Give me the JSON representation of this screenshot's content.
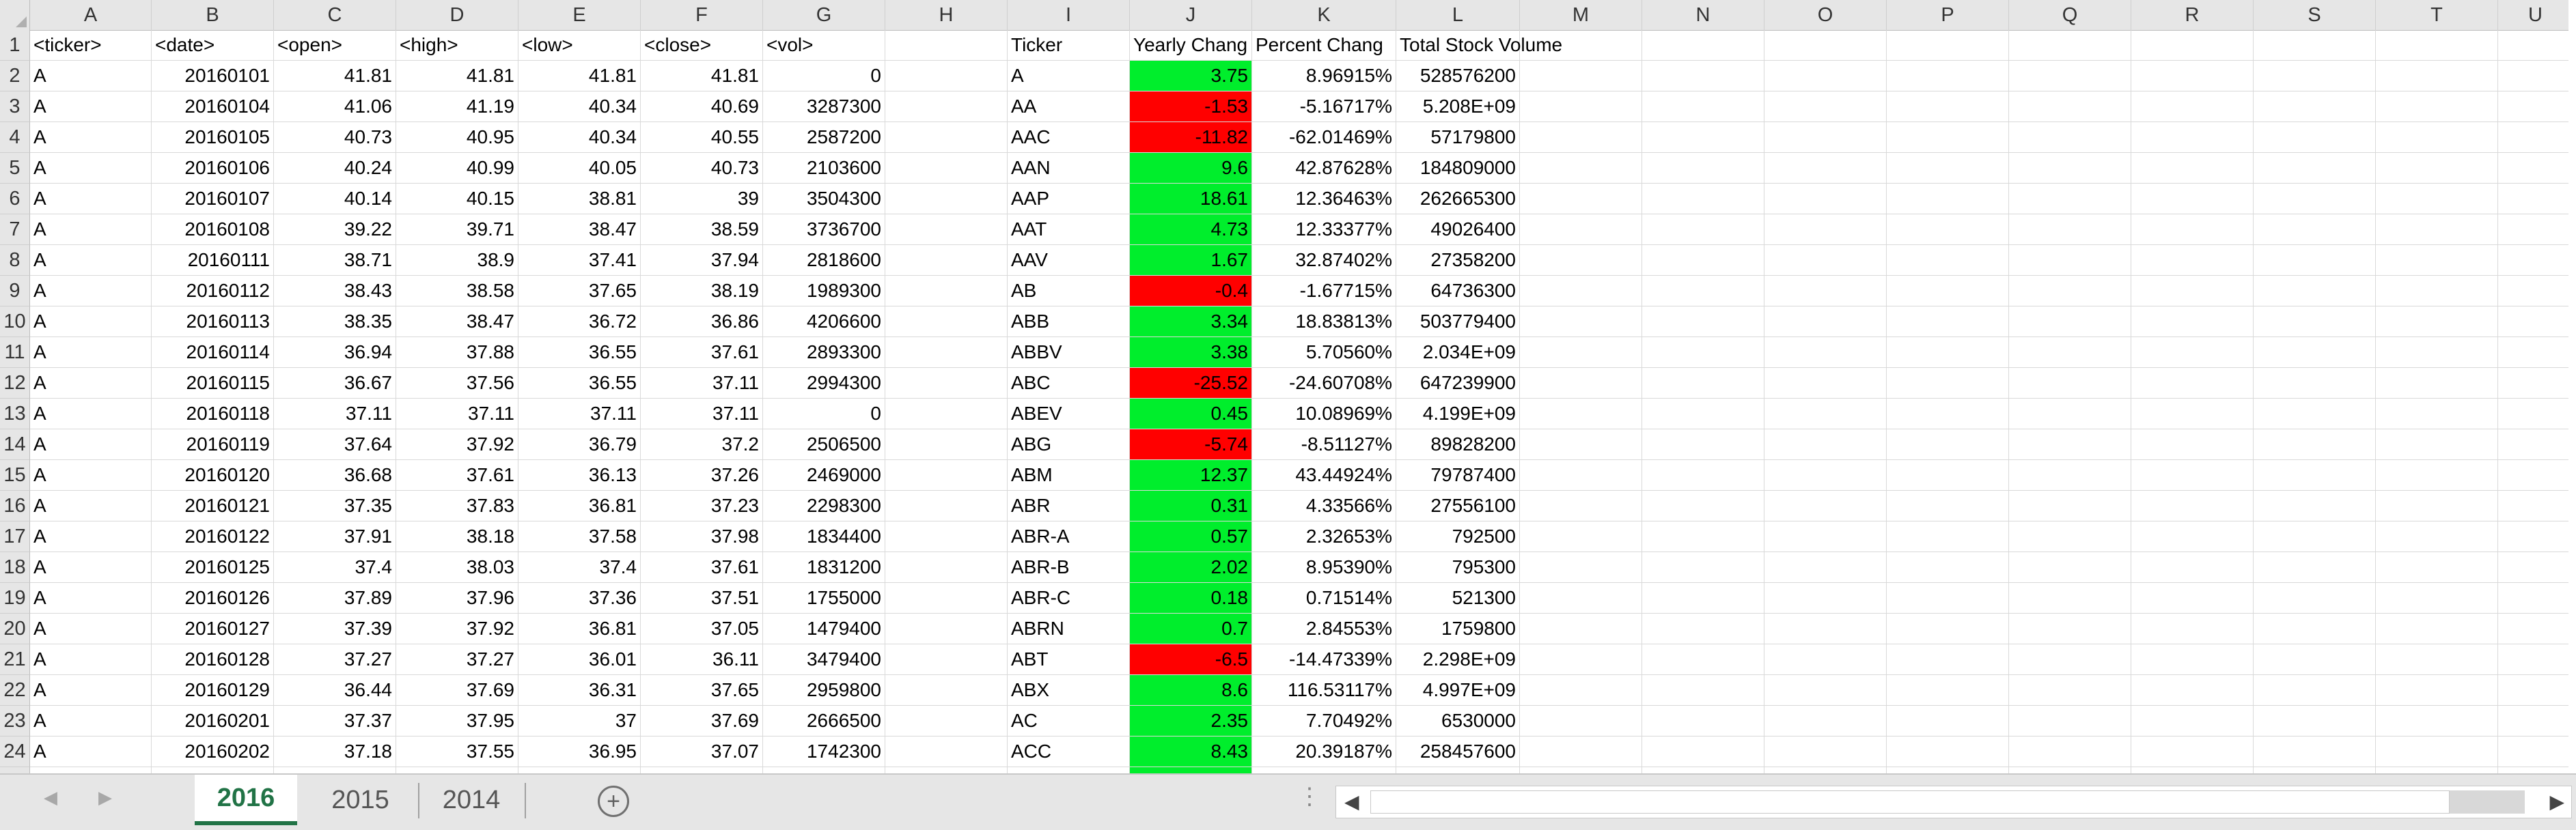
{
  "columns": [
    "A",
    "B",
    "C",
    "D",
    "E",
    "F",
    "G",
    "H",
    "I",
    "J",
    "K",
    "L",
    "M",
    "N",
    "O",
    "P",
    "Q",
    "R",
    "S",
    "T",
    "U"
  ],
  "header_row": [
    "<ticker>",
    "<date>",
    "<open>",
    "<high>",
    "<low>",
    "<close>",
    "<vol>",
    "",
    "Ticker",
    "Yearly Chang",
    "Percent Chang",
    "Total Stock Volume"
  ],
  "rows": [
    {
      "n": "2",
      "a": "A",
      "b": "20160101",
      "c": "41.81",
      "d": "41.81",
      "e": "41.81",
      "f": "41.81",
      "g": "0",
      "i": "A",
      "j": "3.75",
      "jc": "green",
      "k": "8.96915%",
      "l": "528576200"
    },
    {
      "n": "3",
      "a": "A",
      "b": "20160104",
      "c": "41.06",
      "d": "41.19",
      "e": "40.34",
      "f": "40.69",
      "g": "3287300",
      "i": "AA",
      "j": "-1.53",
      "jc": "red",
      "k": "-5.16717%",
      "l": "5.208E+09"
    },
    {
      "n": "4",
      "a": "A",
      "b": "20160105",
      "c": "40.73",
      "d": "40.95",
      "e": "40.34",
      "f": "40.55",
      "g": "2587200",
      "i": "AAC",
      "j": "-11.82",
      "jc": "red",
      "k": "-62.01469%",
      "l": "57179800"
    },
    {
      "n": "5",
      "a": "A",
      "b": "20160106",
      "c": "40.24",
      "d": "40.99",
      "e": "40.05",
      "f": "40.73",
      "g": "2103600",
      "i": "AAN",
      "j": "9.6",
      "jc": "green",
      "k": "42.87628%",
      "l": "184809000"
    },
    {
      "n": "6",
      "a": "A",
      "b": "20160107",
      "c": "40.14",
      "d": "40.15",
      "e": "38.81",
      "f": "39",
      "g": "3504300",
      "i": "AAP",
      "j": "18.61",
      "jc": "green",
      "k": "12.36463%",
      "l": "262665300"
    },
    {
      "n": "7",
      "a": "A",
      "b": "20160108",
      "c": "39.22",
      "d": "39.71",
      "e": "38.47",
      "f": "38.59",
      "g": "3736700",
      "i": "AAT",
      "j": "4.73",
      "jc": "green",
      "k": "12.33377%",
      "l": "49026400"
    },
    {
      "n": "8",
      "a": "A",
      "b": "20160111",
      "c": "38.71",
      "d": "38.9",
      "e": "37.41",
      "f": "37.94",
      "g": "2818600",
      "i": "AAV",
      "j": "1.67",
      "jc": "green",
      "k": "32.87402%",
      "l": "27358200"
    },
    {
      "n": "9",
      "a": "A",
      "b": "20160112",
      "c": "38.43",
      "d": "38.58",
      "e": "37.65",
      "f": "38.19",
      "g": "1989300",
      "i": "AB",
      "j": "-0.4",
      "jc": "red",
      "k": "-1.67715%",
      "l": "64736300"
    },
    {
      "n": "10",
      "a": "A",
      "b": "20160113",
      "c": "38.35",
      "d": "38.47",
      "e": "36.72",
      "f": "36.86",
      "g": "4206600",
      "i": "ABB",
      "j": "3.34",
      "jc": "green",
      "k": "18.83813%",
      "l": "503779400"
    },
    {
      "n": "11",
      "a": "A",
      "b": "20160114",
      "c": "36.94",
      "d": "37.88",
      "e": "36.55",
      "f": "37.61",
      "g": "2893300",
      "i": "ABBV",
      "j": "3.38",
      "jc": "green",
      "k": "5.70560%",
      "l": "2.034E+09"
    },
    {
      "n": "12",
      "a": "A",
      "b": "20160115",
      "c": "36.67",
      "d": "37.56",
      "e": "36.55",
      "f": "37.11",
      "g": "2994300",
      "i": "ABC",
      "j": "-25.52",
      "jc": "red",
      "k": "-24.60708%",
      "l": "647239900"
    },
    {
      "n": "13",
      "a": "A",
      "b": "20160118",
      "c": "37.11",
      "d": "37.11",
      "e": "37.11",
      "f": "37.11",
      "g": "0",
      "i": "ABEV",
      "j": "0.45",
      "jc": "green",
      "k": "10.08969%",
      "l": "4.199E+09"
    },
    {
      "n": "14",
      "a": "A",
      "b": "20160119",
      "c": "37.64",
      "d": "37.92",
      "e": "36.79",
      "f": "37.2",
      "g": "2506500",
      "i": "ABG",
      "j": "-5.74",
      "jc": "red",
      "k": "-8.51127%",
      "l": "89828200"
    },
    {
      "n": "15",
      "a": "A",
      "b": "20160120",
      "c": "36.68",
      "d": "37.61",
      "e": "36.13",
      "f": "37.26",
      "g": "2469000",
      "i": "ABM",
      "j": "12.37",
      "jc": "green",
      "k": "43.44924%",
      "l": "79787400"
    },
    {
      "n": "16",
      "a": "A",
      "b": "20160121",
      "c": "37.35",
      "d": "37.83",
      "e": "36.81",
      "f": "37.23",
      "g": "2298300",
      "i": "ABR",
      "j": "0.31",
      "jc": "green",
      "k": "4.33566%",
      "l": "27556100"
    },
    {
      "n": "17",
      "a": "A",
      "b": "20160122",
      "c": "37.91",
      "d": "38.18",
      "e": "37.58",
      "f": "37.98",
      "g": "1834400",
      "i": "ABR-A",
      "j": "0.57",
      "jc": "green",
      "k": "2.32653%",
      "l": "792500"
    },
    {
      "n": "18",
      "a": "A",
      "b": "20160125",
      "c": "37.4",
      "d": "38.03",
      "e": "37.4",
      "f": "37.61",
      "g": "1831200",
      "i": "ABR-B",
      "j": "2.02",
      "jc": "green",
      "k": "8.95390%",
      "l": "795300"
    },
    {
      "n": "19",
      "a": "A",
      "b": "20160126",
      "c": "37.89",
      "d": "37.96",
      "e": "37.36",
      "f": "37.51",
      "g": "1755000",
      "i": "ABR-C",
      "j": "0.18",
      "jc": "green",
      "k": "0.71514%",
      "l": "521300"
    },
    {
      "n": "20",
      "a": "A",
      "b": "20160127",
      "c": "37.39",
      "d": "37.92",
      "e": "36.81",
      "f": "37.05",
      "g": "1479400",
      "i": "ABRN",
      "j": "0.7",
      "jc": "green",
      "k": "2.84553%",
      "l": "1759800"
    },
    {
      "n": "21",
      "a": "A",
      "b": "20160128",
      "c": "37.27",
      "d": "37.27",
      "e": "36.01",
      "f": "36.11",
      "g": "3479400",
      "i": "ABT",
      "j": "-6.5",
      "jc": "red",
      "k": "-14.47339%",
      "l": "2.298E+09"
    },
    {
      "n": "22",
      "a": "A",
      "b": "20160129",
      "c": "36.44",
      "d": "37.69",
      "e": "36.31",
      "f": "37.65",
      "g": "2959800",
      "i": "ABX",
      "j": "8.6",
      "jc": "green",
      "k": "116.53117%",
      "l": "4.997E+09"
    },
    {
      "n": "23",
      "a": "A",
      "b": "20160201",
      "c": "37.37",
      "d": "37.95",
      "e": "37",
      "f": "37.69",
      "g": "2666500",
      "i": "AC",
      "j": "2.35",
      "jc": "green",
      "k": "7.70492%",
      "l": "6530000"
    },
    {
      "n": "24",
      "a": "A",
      "b": "20160202",
      "c": "37.18",
      "d": "37.55",
      "e": "36.95",
      "f": "37.07",
      "g": "1742300",
      "i": "ACC",
      "j": "8.43",
      "jc": "green",
      "k": "20.39187%",
      "l": "258457600"
    }
  ],
  "sheet_tabs": [
    "2016",
    "2015",
    "2014"
  ],
  "active_tab": "2016",
  "nav": {
    "prev": "◀",
    "next": "▶",
    "add": "+",
    "more": "⋮"
  },
  "colors": {
    "positive": "#00ee2c",
    "negative": "#ff0000",
    "accent": "#217346"
  }
}
